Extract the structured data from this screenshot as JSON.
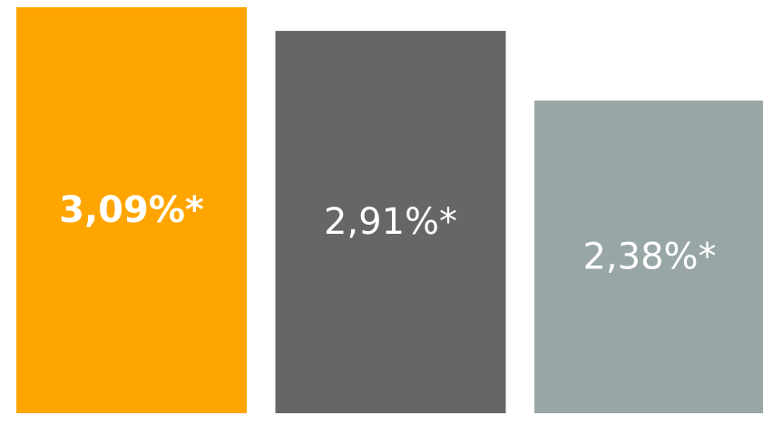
{
  "chart_data": {
    "type": "bar",
    "title": "",
    "xlabel": "",
    "ylabel": "",
    "categories": [
      "",
      "",
      ""
    ],
    "values": [
      3.09,
      2.91,
      2.38
    ],
    "data_labels": [
      "3,09%*",
      "2,91%*",
      "2,38%*"
    ],
    "colors": [
      "#FFA500",
      "#666666",
      "#98A6A6"
    ],
    "emphasis": [
      true,
      false,
      false
    ],
    "ylim": [
      0,
      3.09
    ],
    "grid": false,
    "legend": "none"
  }
}
